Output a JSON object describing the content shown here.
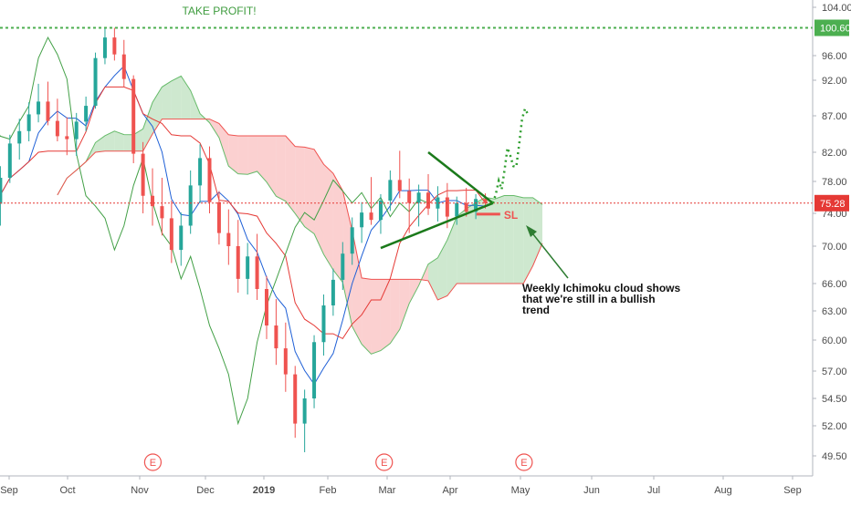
{
  "chart_data": {
    "type": "candlestick",
    "y_axis": {
      "position": "right",
      "ticks": [
        "104.00",
        "96.00",
        "92.00",
        "87.00",
        "82.00",
        "78.00",
        "74.00",
        "70.00",
        "66.00",
        "63.00",
        "60.00",
        "57.00",
        "54.50",
        "52.00",
        "49.50"
      ],
      "tick_values": [
        104.0,
        96.0,
        92.0,
        87.0,
        82.0,
        78.0,
        74.0,
        70.0,
        66.0,
        63.0,
        60.0,
        57.0,
        54.5,
        52.0,
        49.5
      ]
    },
    "x_axis": {
      "ticks": [
        "Sep",
        "Oct",
        "Nov",
        "Dec",
        "2019",
        "Feb",
        "Mar",
        "Apr",
        "May",
        "Jun",
        "Jul",
        "Aug",
        "Sep"
      ]
    },
    "price_labels": [
      {
        "label": "100.60",
        "value": 100.6,
        "color": "#4caf50"
      },
      {
        "label": "75.28",
        "value": 75.28,
        "color": "#e53935"
      }
    ],
    "annotations": {
      "take_profit": "TAKE PROFIT!",
      "stop_loss": "SL",
      "note_lines": [
        "Weekly Ichimoku cloud shows",
        "that we're still in a bullish",
        "trend"
      ],
      "earnings_marker": "E",
      "earnings_markers_at": [
        "Nov",
        "Mar",
        "May"
      ]
    },
    "colors": {
      "up": "#26a69a",
      "down": "#ef5350",
      "kijun": "#e53935",
      "tenkan": "#1e5fd6",
      "chikou": "#43a047",
      "cloud_bull": "#a5d6a7",
      "cloud_bear": "#f8a9a9",
      "trend": "#1b7a1b",
      "target": "#2e9e2e"
    },
    "candles": [
      {
        "o": 75.2,
        "h": 80.1,
        "l": 72.5,
        "c": 78.5
      },
      {
        "o": 78.5,
        "h": 84.4,
        "l": 77.8,
        "c": 83.2
      },
      {
        "o": 83.2,
        "h": 86.6,
        "l": 81.0,
        "c": 84.9
      },
      {
        "o": 84.9,
        "h": 88.9,
        "l": 83.5,
        "c": 87.2
      },
      {
        "o": 87.2,
        "h": 91.5,
        "l": 86.1,
        "c": 89.0
      },
      {
        "o": 89.0,
        "h": 91.8,
        "l": 85.7,
        "c": 86.3
      },
      {
        "o": 86.3,
        "h": 89.4,
        "l": 83.5,
        "c": 84.2
      },
      {
        "o": 84.2,
        "h": 86.8,
        "l": 81.6,
        "c": 83.8
      },
      {
        "o": 83.8,
        "h": 87.4,
        "l": 81.5,
        "c": 86.2
      },
      {
        "o": 86.2,
        "h": 89.7,
        "l": 84.9,
        "c": 88.4
      },
      {
        "o": 88.4,
        "h": 96.5,
        "l": 88.0,
        "c": 95.6
      },
      {
        "o": 95.6,
        "h": 100.6,
        "l": 94.6,
        "c": 99.0
      },
      {
        "o": 99.0,
        "h": 100.6,
        "l": 95.2,
        "c": 96.2
      },
      {
        "o": 96.2,
        "h": 98.6,
        "l": 91.0,
        "c": 92.2
      },
      {
        "o": 92.2,
        "h": 92.8,
        "l": 80.5,
        "c": 81.8
      },
      {
        "o": 81.8,
        "h": 83.4,
        "l": 74.0,
        "c": 76.2
      },
      {
        "o": 76.2,
        "h": 79.8,
        "l": 72.5,
        "c": 74.9
      },
      {
        "o": 74.9,
        "h": 78.5,
        "l": 71.3,
        "c": 73.4
      },
      {
        "o": 73.4,
        "h": 75.6,
        "l": 68.2,
        "c": 69.6
      },
      {
        "o": 69.6,
        "h": 74.1,
        "l": 67.9,
        "c": 72.5
      },
      {
        "o": 72.5,
        "h": 79.5,
        "l": 71.5,
        "c": 77.5
      },
      {
        "o": 77.5,
        "h": 83.1,
        "l": 75.3,
        "c": 81.2
      },
      {
        "o": 81.2,
        "h": 82.8,
        "l": 74.0,
        "c": 75.4
      },
      {
        "o": 75.4,
        "h": 76.8,
        "l": 70.2,
        "c": 71.6
      },
      {
        "o": 71.6,
        "h": 74.5,
        "l": 68.0,
        "c": 70.0
      },
      {
        "o": 70.0,
        "h": 73.2,
        "l": 65.0,
        "c": 66.5
      },
      {
        "o": 66.5,
        "h": 70.4,
        "l": 64.8,
        "c": 68.9
      },
      {
        "o": 68.9,
        "h": 71.5,
        "l": 64.2,
        "c": 65.4
      },
      {
        "o": 65.4,
        "h": 66.8,
        "l": 60.1,
        "c": 61.5
      },
      {
        "o": 61.5,
        "h": 64.3,
        "l": 57.6,
        "c": 59.2
      },
      {
        "o": 59.2,
        "h": 61.8,
        "l": 55.1,
        "c": 56.7
      },
      {
        "o": 56.7,
        "h": 57.5,
        "l": 51.0,
        "c": 52.2
      },
      {
        "o": 52.2,
        "h": 55.3,
        "l": 49.8,
        "c": 54.5
      },
      {
        "o": 54.5,
        "h": 60.5,
        "l": 53.6,
        "c": 59.8
      },
      {
        "o": 59.8,
        "h": 64.8,
        "l": 58.5,
        "c": 63.6
      },
      {
        "o": 63.6,
        "h": 67.6,
        "l": 62.5,
        "c": 66.4
      },
      {
        "o": 66.4,
        "h": 70.5,
        "l": 65.3,
        "c": 69.2
      },
      {
        "o": 69.2,
        "h": 73.5,
        "l": 68.0,
        "c": 72.3
      },
      {
        "o": 72.3,
        "h": 75.4,
        "l": 70.4,
        "c": 74.1
      },
      {
        "o": 74.1,
        "h": 78.6,
        "l": 72.6,
        "c": 73.2
      },
      {
        "o": 73.2,
        "h": 76.4,
        "l": 71.5,
        "c": 75.6
      },
      {
        "o": 75.6,
        "h": 79.5,
        "l": 74.3,
        "c": 78.2
      },
      {
        "o": 78.2,
        "h": 82.2,
        "l": 75.9,
        "c": 76.8
      },
      {
        "o": 76.8,
        "h": 78.4,
        "l": 71.6,
        "c": 75.3
      },
      {
        "o": 75.3,
        "h": 77.6,
        "l": 72.4,
        "c": 76.6
      },
      {
        "o": 76.6,
        "h": 79.0,
        "l": 73.8,
        "c": 74.6
      },
      {
        "o": 74.6,
        "h": 77.4,
        "l": 73.0,
        "c": 76.0
      },
      {
        "o": 76.0,
        "h": 77.8,
        "l": 72.2,
        "c": 73.6
      },
      {
        "o": 73.6,
        "h": 76.1,
        "l": 72.6,
        "c": 75.3
      },
      {
        "o": 75.3,
        "h": 77.2,
        "l": 73.6,
        "c": 74.2
      },
      {
        "o": 74.2,
        "h": 76.4,
        "l": 73.3,
        "c": 75.8
      },
      {
        "o": 75.8,
        "h": 76.5,
        "l": 74.6,
        "c": 75.28
      }
    ],
    "target_path_values": [
      75.28,
      76.4,
      78.1,
      77.0,
      79.6,
      82.6,
      81.5,
      80.1,
      80.0,
      83.1,
      86.6,
      88.0,
      87.2
    ]
  }
}
